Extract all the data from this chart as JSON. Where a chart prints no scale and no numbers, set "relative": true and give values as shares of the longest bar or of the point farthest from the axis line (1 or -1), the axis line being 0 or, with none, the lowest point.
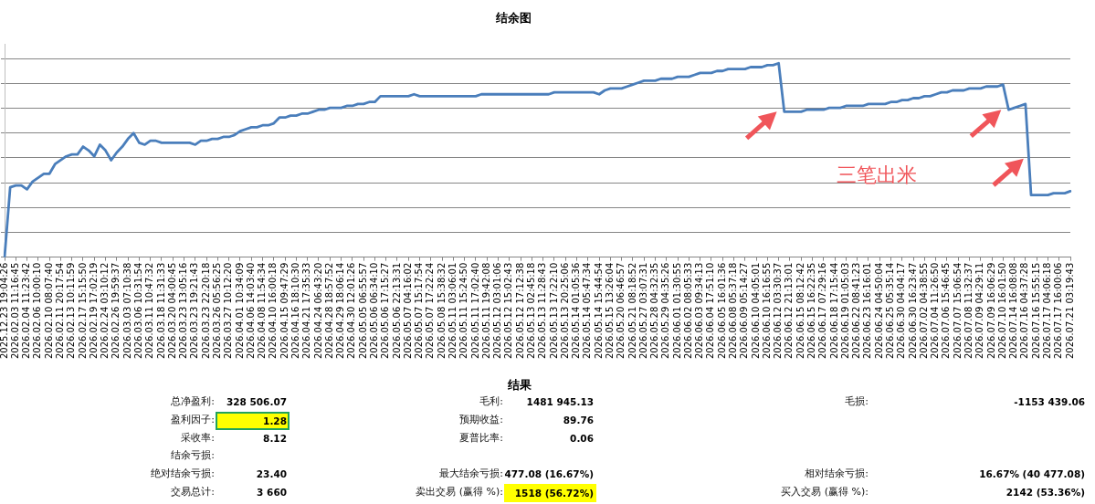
{
  "chart_data": [
    {
      "type": "line",
      "title": "结余图",
      "categories": [
        "2025.12.23 19:04:26",
        null,
        "2026.02.03 11:16:45",
        null,
        "2026.02.04 11:23:42",
        null,
        "2026.02.06 10:00:10",
        null,
        "2026.02.10 08:07:40",
        null,
        "2026.02.11 20:17:54",
        null,
        "2026.02.13 10:11:59",
        null,
        "2026.02.17 15:15:50",
        null,
        "2026.02.19 17:02:19",
        null,
        "2026.02.24 03:10:12",
        null,
        "2026.02.26 19:59:37",
        null,
        "2026.03.03 07:10:38",
        null,
        "2026.03.06 10:31:54",
        null,
        "2026.03.11 10:47:32",
        null,
        "2026.03.18 11:31:33",
        null,
        "2026.03.20 04:00:45",
        null,
        "2026.03.23 13:05:16",
        null,
        "2026.03.23 19:21:43",
        null,
        "2026.03.23 22:20:18",
        null,
        "2026.03.26 05:56:25",
        null,
        "2026.03.27 10:12:20",
        null,
        "2026.04.01 10:34:09",
        null,
        "2026.04.06 14:03:40",
        null,
        "2026.04.08 11:54:34",
        null,
        "2026.04.10 16:00:18",
        null,
        "2026.04.15 09:47:29",
        null,
        "2026.04.16 18:10:30",
        null,
        "2026.04.21 17:35:33",
        null,
        "2026.04.24 06:43:20",
        null,
        "2026.04.28 18:57:52",
        null,
        "2026.04.29 18:06:14",
        null,
        "2026.04.30 12:01:26",
        null,
        "2026.05.05 06:55:57",
        null,
        "2026.05.06 06:34:10",
        null,
        "2026.05.06 17:15:27",
        null,
        "2026.05.06 22:13:31",
        null,
        "2026.05.07 04:16:02",
        null,
        "2026.05.07 15:17:54",
        null,
        "2026.05.07 17:22:24",
        null,
        "2026.05.08 15:38:32",
        null,
        "2026.05.11 03:06:01",
        null,
        "2026.05.11 15:24:50",
        null,
        "2026.05.11 17:02:40",
        null,
        "2026.05.11 19:42:08",
        null,
        "2026.05.12 03:01:06",
        null,
        "2026.05.12 15:02:43",
        null,
        "2026.05.12 17:12:38",
        null,
        "2026.05.13 02:45:18",
        null,
        "2026.05.13 11:28:43",
        null,
        "2026.05.13 17:22:10",
        null,
        "2026.05.13 20:25:06",
        null,
        "2026.05.14 01:05:36",
        null,
        "2026.05.14 05:47:34",
        null,
        "2026.05.14 15:44:54",
        null,
        "2026.05.15 13:26:04",
        null,
        "2026.05.20 06:46:57",
        null,
        "2026.05.21 08:18:52",
        null,
        "2026.05.27 03:07:31",
        null,
        "2026.05.28 04:32:35",
        null,
        "2026.05.29 04:35:26",
        null,
        "2026.06.01 01:30:55",
        null,
        "2026.06.02 08:05:33",
        null,
        "2026.06.03 09:34:13",
        null,
        "2026.06.04 17:51:10",
        null,
        "2026.06.05 16:01:36",
        null,
        "2026.06.08 05:37:18",
        null,
        "2026.06.09 05:14:27",
        null,
        "2026.06.10 04:05:01",
        null,
        "2026.06.10 16:16:55",
        null,
        "2026.06.12 03:30:37",
        null,
        "2026.06.12 21:13:01",
        null,
        "2026.06.15 08:12:42",
        null,
        "2026.06.15 16:22:35",
        null,
        "2026.06.17 07:29:16",
        null,
        "2026.06.18 17:15:44",
        null,
        "2026.06.19 01:05:03",
        null,
        "2026.06.22 08:41:23",
        null,
        "2026.06.23 16:16:01",
        null,
        "2026.06.24 04:50:04",
        null,
        "2026.06.25 05:35:14",
        null,
        "2026.06.30 04:04:17",
        null,
        "2026.06.30 16:23:47",
        null,
        "2026.07.02 04:38:55",
        null,
        "2026.07.04 11:26:50",
        null,
        "2026.07.06 15:46:45",
        null,
        "2026.07.07 15:06:54",
        null,
        "2026.07.08 11:32:37",
        null,
        "2026.07.09 04:29:11",
        null,
        "2026.07.09 16:06:29",
        null,
        "2026.07.10 16:01:50",
        null,
        "2026.07.14 16:08:08",
        null,
        "2026.07.16 04:37:28",
        null,
        "2026.07.16 15:55:15",
        null,
        "2026.07.17 04:06:18",
        null,
        "2026.07.17 16:00:06",
        null,
        "2026.07.21 03:19:43"
      ],
      "values": [
        0,
        0.36,
        0.37,
        0.37,
        0.35,
        0.39,
        0.41,
        0.43,
        0.43,
        0.48,
        0.5,
        0.52,
        0.53,
        0.53,
        0.57,
        0.55,
        0.52,
        0.58,
        0.55,
        0.5,
        0.54,
        0.57,
        0.61,
        0.64,
        0.59,
        0.58,
        0.6,
        0.6,
        0.59,
        0.59,
        0.59,
        0.59,
        0.59,
        0.59,
        0.58,
        0.6,
        0.6,
        0.61,
        0.61,
        0.62,
        0.62,
        0.63,
        0.65,
        0.66,
        0.67,
        0.67,
        0.68,
        0.68,
        0.69,
        0.72,
        0.72,
        0.73,
        0.73,
        0.74,
        0.74,
        0.75,
        0.76,
        0.76,
        0.77,
        0.77,
        0.77,
        0.78,
        0.78,
        0.79,
        0.79,
        0.8,
        0.8,
        0.83,
        0.83,
        0.83,
        0.83,
        0.83,
        0.83,
        0.84,
        0.83,
        0.83,
        0.83,
        0.83,
        0.83,
        0.83,
        0.83,
        0.83,
        0.83,
        0.83,
        0.83,
        0.84,
        0.84,
        0.84,
        0.84,
        0.84,
        0.84,
        0.84,
        0.84,
        0.84,
        0.84,
        0.84,
        0.84,
        0.84,
        0.85,
        0.85,
        0.85,
        0.85,
        0.85,
        0.85,
        0.85,
        0.85,
        0.84,
        0.86,
        0.87,
        0.87,
        0.87,
        0.88,
        0.89,
        0.9,
        0.91,
        0.91,
        0.91,
        0.92,
        0.92,
        0.92,
        0.93,
        0.93,
        0.93,
        0.94,
        0.95,
        0.95,
        0.95,
        0.96,
        0.96,
        0.97,
        0.97,
        0.97,
        0.97,
        0.98,
        0.98,
        0.98,
        0.99,
        0.99,
        1,
        0.75,
        0.75,
        0.75,
        0.75,
        0.76,
        0.76,
        0.76,
        0.76,
        0.77,
        0.77,
        0.77,
        0.78,
        0.78,
        0.78,
        0.78,
        0.79,
        0.79,
        0.79,
        0.79,
        0.8,
        0.8,
        0.81,
        0.81,
        0.82,
        0.82,
        0.83,
        0.83,
        0.84,
        0.85,
        0.85,
        0.86,
        0.86,
        0.86,
        0.87,
        0.87,
        0.87,
        0.88,
        0.88,
        0.88,
        0.89,
        0.76,
        0.77,
        0.78,
        0.79,
        0.32,
        0.32,
        0.32,
        0.32,
        0.33,
        0.33,
        0.33,
        0.34
      ],
      "color": "#4a7ebb",
      "relative": true,
      "grid": "y",
      "annotations": [
        "三笔出米"
      ]
    },
    {
      "type": "other",
      "title": "结果",
      "annotations": [
        "总净盈利:",
        "328 506.07",
        "毛利:",
        "1481 945.13",
        "毛损:",
        "-1153 439.06",
        "盈利因子:",
        "1.28",
        "预期收益:",
        "89.76",
        "采收率:",
        "8.12",
        "夏普比率:",
        "0.06",
        "结余亏损:",
        "绝对结余亏损:",
        "23.40",
        "最大结余亏损:",
        "477.08 (16.67%)",
        "相对结余亏损:",
        "16.67% (40 477.08)",
        "交易总计:",
        "3 660",
        "卖出交易 (赢得 %):",
        "1518 (56.72%)",
        "买入交易 (赢得 %):",
        "2142 (53.36%)"
      ]
    }
  ]
}
